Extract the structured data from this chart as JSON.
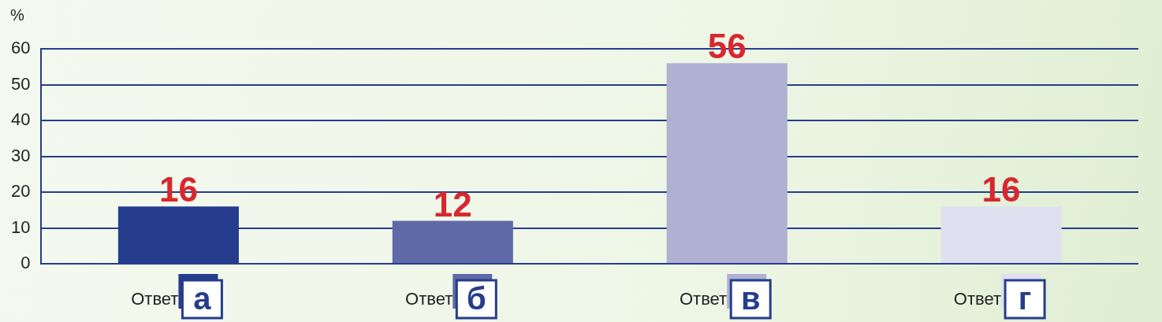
{
  "chart_data": {
    "type": "bar",
    "ylabel": "%",
    "categories": [
      "Ответ а",
      "Ответ б",
      "Ответ в",
      "Ответ г"
    ],
    "values": [
      16,
      12,
      56,
      16
    ],
    "colors": [
      "#253d8c",
      "#5f69a8",
      "#afb0d2",
      "#dfe0ef"
    ],
    "ylim": [
      0,
      60
    ],
    "yticks": [
      0,
      10,
      20,
      30,
      40,
      50,
      60
    ],
    "grid": "y",
    "data_labels": true,
    "legend": false
  }
}
